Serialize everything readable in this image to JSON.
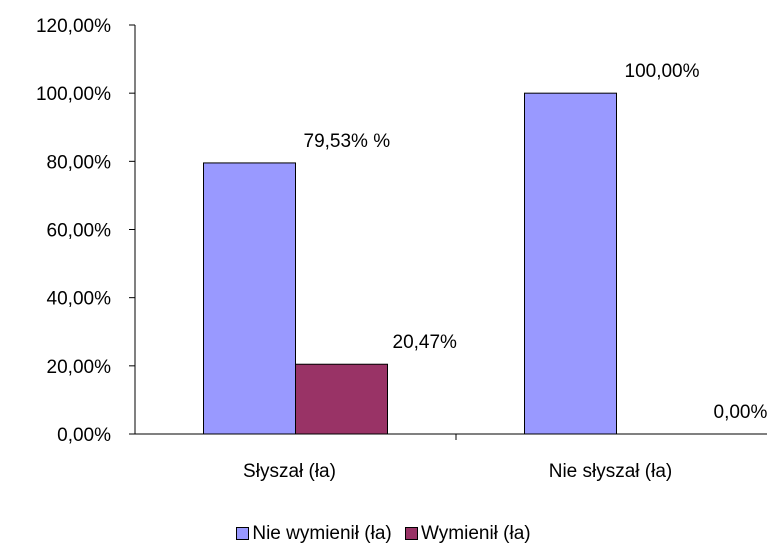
{
  "chart_data": {
    "type": "bar",
    "categories": [
      "Słyszał (ła)",
      "Nie słyszał (ła)"
    ],
    "series": [
      {
        "name": "Nie wymienił (ła)",
        "values": [
          79.53,
          100.0
        ],
        "color": "#9999FF",
        "labels": [
          "79,53% %",
          "100,00%"
        ]
      },
      {
        "name": "Wymienił (ła)",
        "values": [
          20.47,
          0.0
        ],
        "color": "#993366",
        "labels": [
          "20,47%",
          "0,00%"
        ]
      }
    ],
    "yticks": [
      "0,00%",
      "20,00%",
      "40,00%",
      "60,00%",
      "80,00%",
      "100,00%",
      "120,00%"
    ],
    "ylim": [
      0,
      120
    ],
    "ytick_step": 20,
    "grid": false,
    "legend_position": "bottom"
  }
}
